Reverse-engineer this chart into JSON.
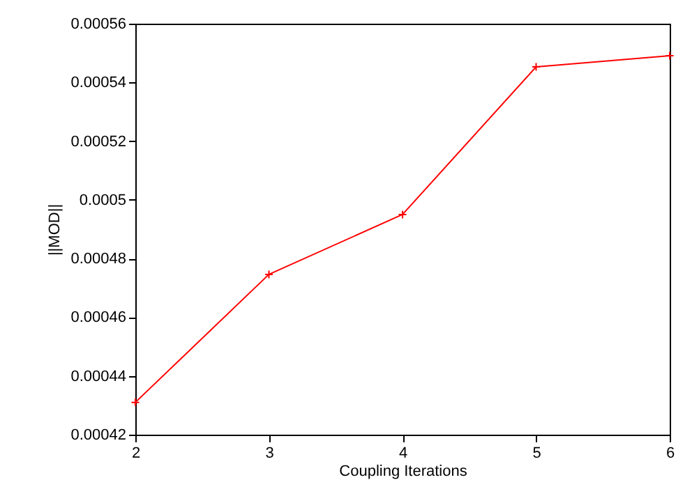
{
  "chart_data": {
    "type": "line",
    "xlabel": "Coupling Iterations",
    "ylabel": "||MOD||",
    "x": [
      2,
      3,
      4,
      5,
      6
    ],
    "series": [
      {
        "color": "#ff0000",
        "values": [
          0.000431,
          0.0004746,
          0.000495,
          0.0005453,
          0.0005491
        ]
      }
    ],
    "xlim": [
      2,
      6
    ],
    "xticks": [
      2,
      3,
      4,
      5,
      6
    ],
    "ylim": [
      0.00042,
      0.00056
    ],
    "yticks": [
      0.00042,
      0.00044,
      0.00046,
      0.00048,
      0.0005,
      0.00052,
      0.00054,
      0.00056
    ],
    "grid": false,
    "marker": "cross",
    "line_style": "solid"
  }
}
